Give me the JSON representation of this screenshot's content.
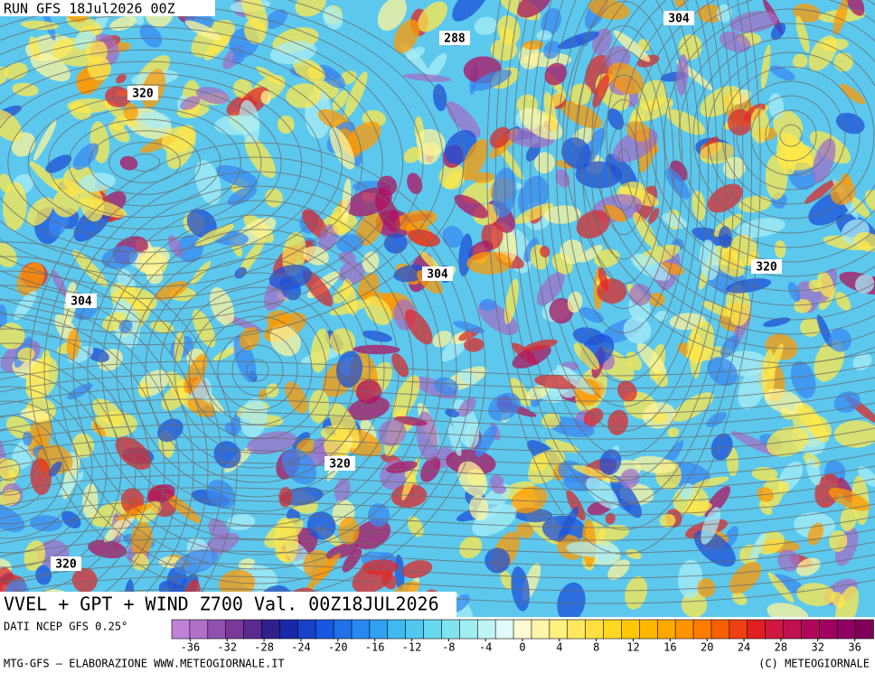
{
  "header": {
    "run": "RUN GFS 18Jul2026 00Z"
  },
  "map": {
    "contour_labels": [
      288,
      304,
      304,
      320,
      320,
      304,
      320,
      320
    ]
  },
  "footer": {
    "title": "VVEL + GPT + WIND Z700 Val. 00Z18JUL2026",
    "source": "DATI NCEP GFS 0.25°",
    "credit_left": "MTG-GFS – ELABORAZIONE WWW.METEOGIORNALE.IT",
    "credit_right": "(C) METEOGIORNALE"
  },
  "colorbar": {
    "lim": [
      -38,
      38
    ],
    "colors": [
      "#c080d8",
      "#b070c8",
      "#9050b0",
      "#7a3898",
      "#5a2a90",
      "#30208a",
      "#1828a8",
      "#1840c8",
      "#1858e0",
      "#2070e8",
      "#2888f0",
      "#30a0f0",
      "#40b8f0",
      "#50c8f0",
      "#68d8f0",
      "#80e4f0",
      "#a0eef2",
      "#c0f4f4",
      "#e0fafa",
      "#fffbd0",
      "#fff5a8",
      "#fff080",
      "#ffe860",
      "#ffe040",
      "#ffd820",
      "#ffc800",
      "#ffb800",
      "#ffa800",
      "#ff9400",
      "#ff7c00",
      "#f86000",
      "#ee4010",
      "#e02020",
      "#d01840",
      "#c01050",
      "#b00858",
      "#a00060",
      "#900060",
      "#800058"
    ],
    "ticks": [
      -36,
      -32,
      -28,
      -24,
      -20,
      -16,
      -12,
      -8,
      -4,
      0,
      4,
      8,
      12,
      16,
      20,
      24,
      28,
      32,
      36
    ]
  }
}
